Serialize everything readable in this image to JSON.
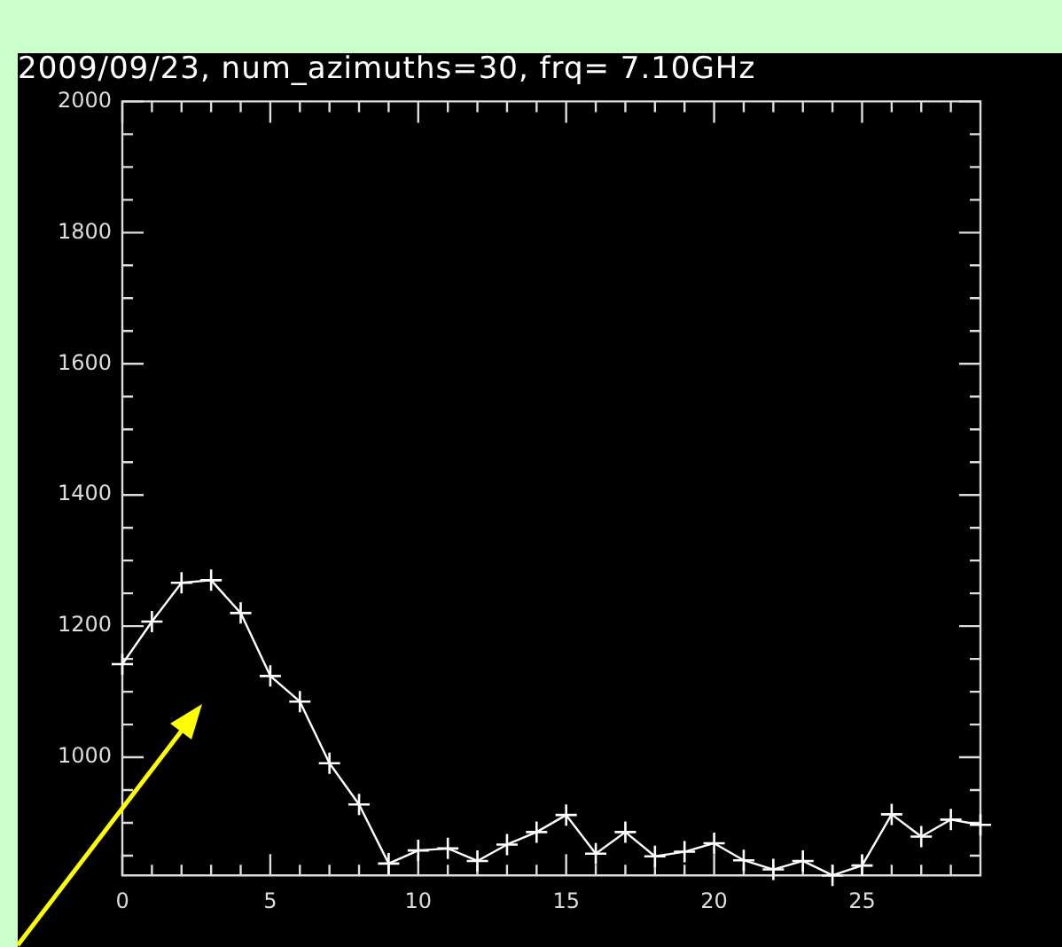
{
  "chart_data": {
    "type": "line",
    "title": "2009/09/23, num_azimuths=30, frq= 7.10GHz",
    "x": [
      0,
      1,
      2,
      3,
      4,
      5,
      6,
      7,
      8,
      9,
      10,
      11,
      12,
      13,
      14,
      15,
      16,
      17,
      18,
      19,
      20,
      21,
      22,
      23,
      24,
      25,
      26,
      27,
      28,
      29
    ],
    "series": [
      {
        "color": "#ffffff",
        "values": [
          1142,
          1207,
          1266,
          1270,
          1220,
          1124,
          1085,
          991,
          928,
          838,
          858,
          861,
          842,
          867,
          886,
          912,
          853,
          886,
          849,
          856,
          869,
          843,
          829,
          842,
          820,
          835,
          913,
          879,
          905,
          897
        ]
      }
    ],
    "xlim": [
      0,
      29
    ],
    "xticks": [
      0,
      {
        "value": 1,
        "label": null
      },
      {
        "value": 2,
        "label": null
      },
      {
        "value": 3,
        "label": null
      },
      {
        "value": 4,
        "label": null
      },
      5,
      {
        "value": 6,
        "label": null
      },
      {
        "value": 7,
        "label": null
      },
      {
        "value": 8,
        "label": null
      },
      {
        "value": 9,
        "label": null
      },
      10,
      {
        "value": 11,
        "label": null
      },
      {
        "value": 12,
        "label": null
      },
      {
        "value": 13,
        "label": null
      },
      {
        "value": 14,
        "label": null
      },
      15,
      {
        "value": 16,
        "label": null
      },
      {
        "value": 17,
        "label": null
      },
      {
        "value": 18,
        "label": null
      },
      {
        "value": 19,
        "label": null
      },
      20,
      {
        "value": 21,
        "label": null
      },
      {
        "value": 22,
        "label": null
      },
      {
        "value": 23,
        "label": null
      },
      {
        "value": 24,
        "label": null
      },
      25,
      {
        "value": 26,
        "label": null
      },
      {
        "value": 27,
        "label": null
      },
      {
        "value": 28,
        "label": null
      }
    ],
    "ylim": [
      820,
      2000
    ],
    "yticks": [
      {
        "value": 850,
        "label": null
      },
      {
        "value": 900,
        "label": null
      },
      {
        "value": 950,
        "label": null
      },
      1000,
      {
        "value": 1050,
        "label": null
      },
      {
        "value": 1100,
        "label": null
      },
      {
        "value": 1150,
        "label": null
      },
      1200,
      {
        "value": 1250,
        "label": null
      },
      {
        "value": 1300,
        "label": null
      },
      {
        "value": 1350,
        "label": null
      },
      1400,
      {
        "value": 1450,
        "label": null
      },
      {
        "value": 1500,
        "label": null
      },
      {
        "value": 1550,
        "label": null
      },
      1600,
      {
        "value": 1650,
        "label": null
      },
      {
        "value": 1700,
        "label": null
      },
      {
        "value": 1750,
        "label": null
      },
      1800,
      {
        "value": 1850,
        "label": null
      },
      {
        "value": 1900,
        "label": null
      },
      {
        "value": 1950,
        "label": null
      },
      2000
    ],
    "grid": false,
    "legend": false,
    "marker": "cross",
    "line_style": "solid"
  }
}
